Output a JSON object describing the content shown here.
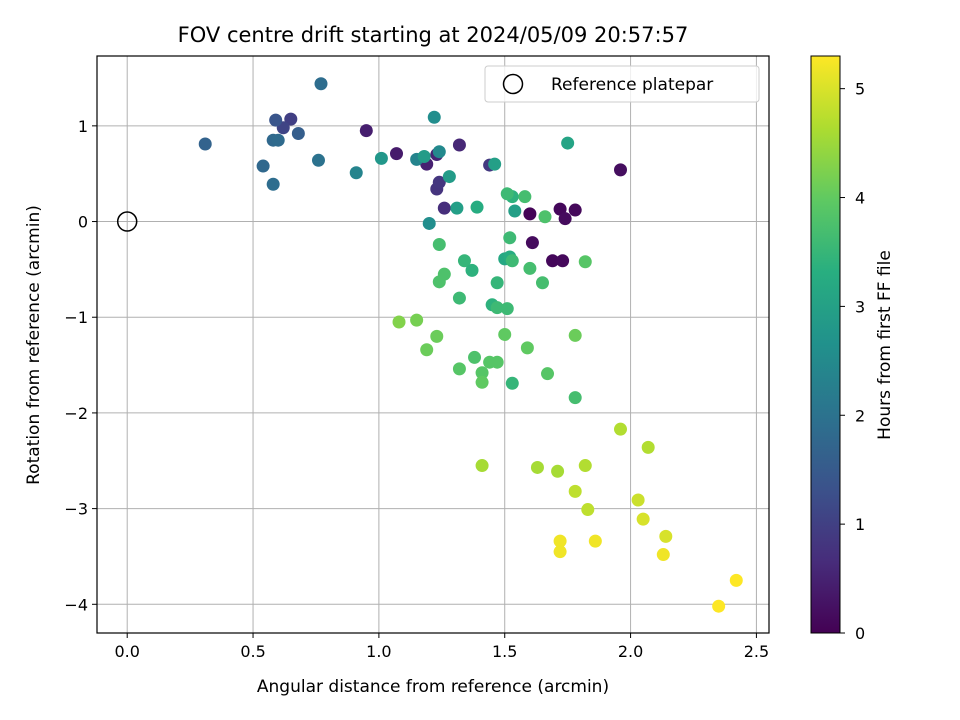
{
  "chart_data": {
    "type": "scatter",
    "title": "FOV centre drift starting at 2024/05/09 20:57:57",
    "xlabel": "Angular distance from reference (arcmin)",
    "ylabel": "Rotation from reference (arcmin)",
    "colorbar_label": "Hours from first FF file",
    "xlim": [
      -0.12,
      2.55
    ],
    "ylim": [
      -4.3,
      1.73
    ],
    "x_ticks": [
      0.0,
      0.5,
      1.0,
      1.5,
      2.0,
      2.5
    ],
    "x_tick_labels": [
      "0.0",
      "0.5",
      "1.0",
      "1.5",
      "2.0",
      "2.5"
    ],
    "y_ticks": [
      -4,
      -3,
      -2,
      -1,
      0,
      1
    ],
    "y_tick_labels": [
      "−4",
      "−3",
      "−2",
      "−1",
      "0",
      "1"
    ],
    "colorbar_range": [
      0,
      5.3
    ],
    "colorbar_ticks": [
      0,
      1,
      2,
      3,
      4,
      5
    ],
    "colorbar_tick_labels": [
      "0",
      "1",
      "2",
      "3",
      "4",
      "5"
    ],
    "colormap": "viridis",
    "grid": true,
    "legend": {
      "position": "top-right",
      "entry": "Reference platepar"
    },
    "reference_point": {
      "x": 0.0,
      "y": 0.0
    },
    "points": [
      {
        "x": 1.6,
        "y": 0.08,
        "c": 0.05
      },
      {
        "x": 1.72,
        "y": 0.13,
        "c": 0.1
      },
      {
        "x": 1.78,
        "y": 0.12,
        "c": 0.12
      },
      {
        "x": 1.74,
        "y": 0.03,
        "c": 0.15
      },
      {
        "x": 1.61,
        "y": -0.22,
        "c": 0.15
      },
      {
        "x": 1.69,
        "y": -0.41,
        "c": 0.1
      },
      {
        "x": 1.73,
        "y": -0.41,
        "c": 0.12
      },
      {
        "x": 1.96,
        "y": 0.54,
        "c": 0.2
      },
      {
        "x": 1.07,
        "y": 0.71,
        "c": 0.4
      },
      {
        "x": 0.95,
        "y": 0.95,
        "c": 0.45
      },
      {
        "x": 1.19,
        "y": 0.6,
        "c": 0.5
      },
      {
        "x": 1.23,
        "y": 0.7,
        "c": 0.55
      },
      {
        "x": 1.32,
        "y": 0.8,
        "c": 0.6
      },
      {
        "x": 1.26,
        "y": 0.14,
        "c": 0.7
      },
      {
        "x": 1.23,
        "y": 0.34,
        "c": 0.8
      },
      {
        "x": 1.24,
        "y": 0.41,
        "c": 0.85
      },
      {
        "x": 1.44,
        "y": 0.59,
        "c": 0.9
      },
      {
        "x": 0.65,
        "y": 1.07,
        "c": 1.0
      },
      {
        "x": 0.62,
        "y": 0.98,
        "c": 1.1
      },
      {
        "x": 0.59,
        "y": 1.06,
        "c": 1.4
      },
      {
        "x": 0.68,
        "y": 0.92,
        "c": 1.6
      },
      {
        "x": 0.31,
        "y": 0.81,
        "c": 1.7
      },
      {
        "x": 0.58,
        "y": 0.85,
        "c": 1.8
      },
      {
        "x": 0.6,
        "y": 0.85,
        "c": 1.85
      },
      {
        "x": 0.54,
        "y": 0.58,
        "c": 1.8
      },
      {
        "x": 0.58,
        "y": 0.39,
        "c": 1.9
      },
      {
        "x": 0.77,
        "y": 1.44,
        "c": 1.9
      },
      {
        "x": 0.76,
        "y": 0.64,
        "c": 2.0
      },
      {
        "x": 0.91,
        "y": 0.51,
        "c": 2.4
      },
      {
        "x": 1.15,
        "y": 0.65,
        "c": 2.4
      },
      {
        "x": 1.22,
        "y": 1.09,
        "c": 2.6
      },
      {
        "x": 1.24,
        "y": 0.73,
        "c": 2.5
      },
      {
        "x": 1.2,
        "y": -0.02,
        "c": 2.6
      },
      {
        "x": 1.01,
        "y": 0.66,
        "c": 2.8
      },
      {
        "x": 1.18,
        "y": 0.68,
        "c": 2.9
      },
      {
        "x": 1.28,
        "y": 0.47,
        "c": 2.9
      },
      {
        "x": 1.31,
        "y": 0.14,
        "c": 3.0
      },
      {
        "x": 1.46,
        "y": 0.6,
        "c": 3.0
      },
      {
        "x": 1.54,
        "y": 0.11,
        "c": 3.0
      },
      {
        "x": 1.75,
        "y": 0.82,
        "c": 3.1
      },
      {
        "x": 1.39,
        "y": 0.15,
        "c": 3.3
      },
      {
        "x": 1.5,
        "y": -0.39,
        "c": 3.2
      },
      {
        "x": 1.52,
        "y": -0.37,
        "c": 3.3
      },
      {
        "x": 1.53,
        "y": 0.26,
        "c": 3.4
      },
      {
        "x": 1.34,
        "y": -0.41,
        "c": 3.5
      },
      {
        "x": 1.37,
        "y": -0.51,
        "c": 3.4
      },
      {
        "x": 1.45,
        "y": -0.87,
        "c": 3.4
      },
      {
        "x": 1.47,
        "y": -0.64,
        "c": 3.5
      },
      {
        "x": 1.51,
        "y": 0.29,
        "c": 3.6
      },
      {
        "x": 1.58,
        "y": 0.26,
        "c": 3.7
      },
      {
        "x": 1.52,
        "y": -0.17,
        "c": 3.6
      },
      {
        "x": 1.53,
        "y": -0.41,
        "c": 3.6
      },
      {
        "x": 1.6,
        "y": -0.49,
        "c": 3.7
      },
      {
        "x": 1.65,
        "y": -0.64,
        "c": 3.7
      },
      {
        "x": 1.66,
        "y": 0.05,
        "c": 3.8
      },
      {
        "x": 1.24,
        "y": -0.24,
        "c": 3.7
      },
      {
        "x": 1.26,
        "y": -0.55,
        "c": 3.8
      },
      {
        "x": 1.24,
        "y": -0.63,
        "c": 3.8
      },
      {
        "x": 1.32,
        "y": -0.8,
        "c": 3.6
      },
      {
        "x": 1.47,
        "y": -0.9,
        "c": 3.6
      },
      {
        "x": 1.51,
        "y": -0.91,
        "c": 3.6
      },
      {
        "x": 1.53,
        "y": -1.69,
        "c": 3.5
      },
      {
        "x": 1.78,
        "y": -1.84,
        "c": 3.7
      },
      {
        "x": 1.82,
        "y": -0.42,
        "c": 3.9
      },
      {
        "x": 1.67,
        "y": -1.59,
        "c": 3.9
      },
      {
        "x": 1.38,
        "y": -1.42,
        "c": 3.8
      },
      {
        "x": 1.41,
        "y": -1.58,
        "c": 3.9
      },
      {
        "x": 1.5,
        "y": -1.18,
        "c": 4.0
      },
      {
        "x": 1.59,
        "y": -1.32,
        "c": 4.0
      },
      {
        "x": 1.44,
        "y": -1.47,
        "c": 3.9
      },
      {
        "x": 1.47,
        "y": -1.47,
        "c": 3.9
      },
      {
        "x": 1.41,
        "y": -1.68,
        "c": 4.0
      },
      {
        "x": 1.32,
        "y": -1.54,
        "c": 3.9
      },
      {
        "x": 1.19,
        "y": -1.34,
        "c": 4.1
      },
      {
        "x": 1.23,
        "y": -1.2,
        "c": 4.1
      },
      {
        "x": 1.15,
        "y": -1.03,
        "c": 4.2
      },
      {
        "x": 1.08,
        "y": -1.05,
        "c": 4.3
      },
      {
        "x": 1.78,
        "y": -1.19,
        "c": 4.1
      },
      {
        "x": 1.41,
        "y": -2.55,
        "c": 4.6
      },
      {
        "x": 1.63,
        "y": -2.57,
        "c": 4.6
      },
      {
        "x": 1.71,
        "y": -2.61,
        "c": 4.6
      },
      {
        "x": 1.82,
        "y": -2.55,
        "c": 4.7
      },
      {
        "x": 1.96,
        "y": -2.17,
        "c": 4.7
      },
      {
        "x": 2.07,
        "y": -2.36,
        "c": 4.7
      },
      {
        "x": 1.78,
        "y": -2.82,
        "c": 4.8
      },
      {
        "x": 1.83,
        "y": -3.01,
        "c": 4.8
      },
      {
        "x": 2.03,
        "y": -2.91,
        "c": 4.9
      },
      {
        "x": 2.05,
        "y": -3.11,
        "c": 5.0
      },
      {
        "x": 2.14,
        "y": -3.29,
        "c": 5.0
      },
      {
        "x": 1.72,
        "y": -3.34,
        "c": 5.2
      },
      {
        "x": 1.72,
        "y": -3.45,
        "c": 5.2
      },
      {
        "x": 1.86,
        "y": -3.34,
        "c": 5.2
      },
      {
        "x": 2.13,
        "y": -3.48,
        "c": 5.2
      },
      {
        "x": 2.35,
        "y": -4.02,
        "c": 5.3
      },
      {
        "x": 2.42,
        "y": -3.75,
        "c": 5.3
      }
    ]
  }
}
